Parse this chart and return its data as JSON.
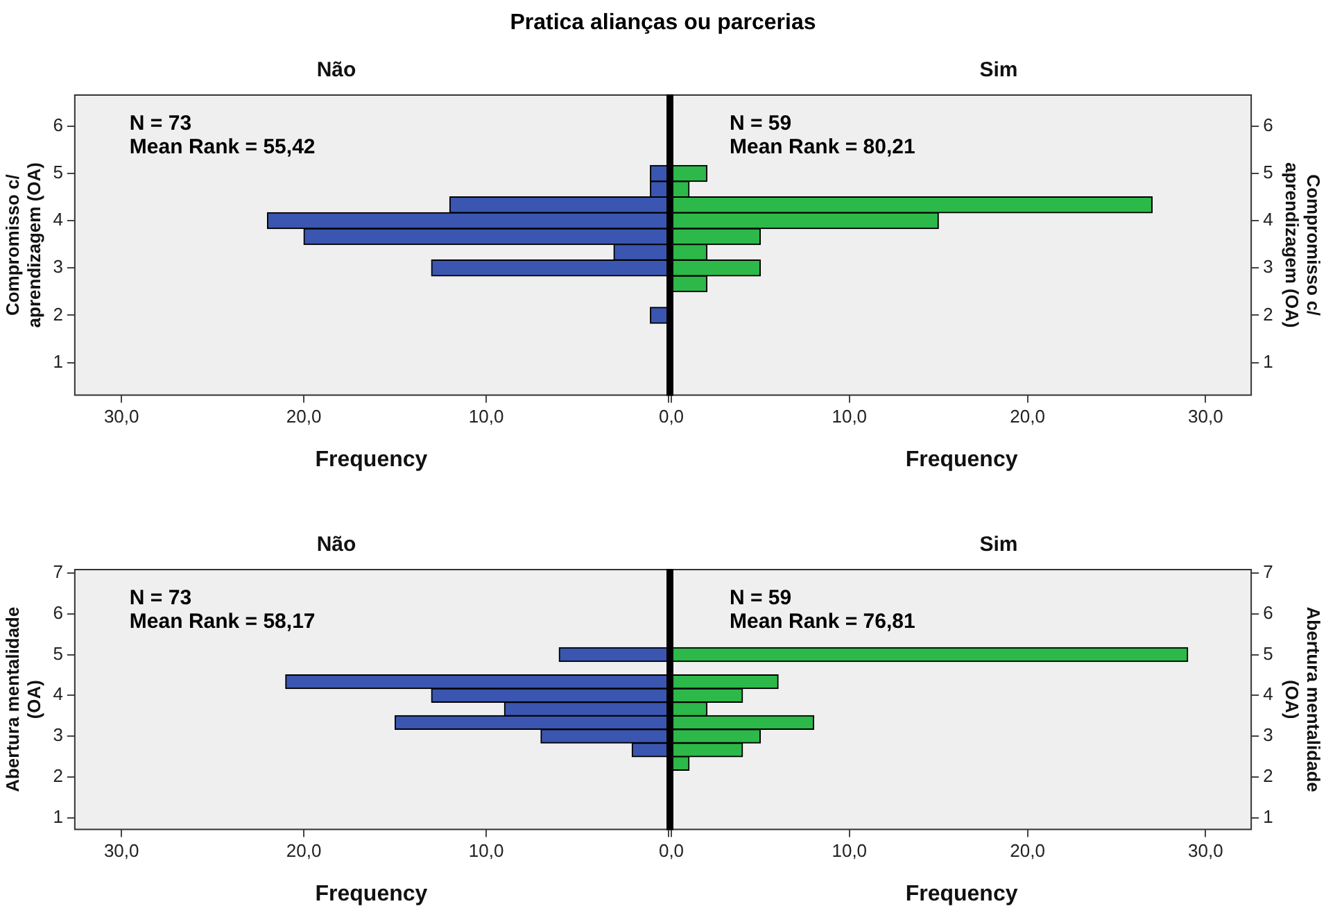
{
  "chart_data": [
    {
      "type": "histogram",
      "orientation": "horizontal",
      "title": "Pratica alianças ou parcerias",
      "subtitle": "Não",
      "xlabel": "Frequency",
      "ylabel": "Compromisso c/ aprendizagem (OA)",
      "color": "#3a56b0",
      "bins": [
        1.83,
        2.17,
        2.5,
        2.83,
        3.17,
        3.5,
        3.83,
        4.17,
        4.5,
        4.83,
        5.17
      ],
      "values": [
        1,
        0,
        0,
        13,
        3,
        20,
        22,
        12,
        1,
        1
      ],
      "xlim": [
        32.6,
        0
      ],
      "xticks": [
        {
          "value": 30,
          "label": "30,0"
        },
        {
          "value": 20,
          "label": "20,0"
        },
        {
          "value": 10,
          "label": "10,0"
        },
        {
          "value": 0,
          "label": null
        }
      ],
      "ylim": [
        0.3,
        6.67
      ],
      "yticks": [
        1,
        2,
        3,
        4,
        5,
        6
      ],
      "grid": false,
      "annotations": [
        "N = 73",
        "Mean Rank = 55,42"
      ]
    },
    {
      "type": "histogram",
      "orientation": "horizontal",
      "subtitle": "Sim",
      "xlabel": "Frequency",
      "ylabel": "Compromisso c/ aprendizagem (OA)",
      "color": "#2db84a",
      "bins": [
        1.83,
        2.17,
        2.5,
        2.83,
        3.17,
        3.5,
        3.83,
        4.17,
        4.5,
        4.83,
        5.17
      ],
      "values": [
        0,
        0,
        2,
        5,
        2,
        5,
        15,
        27,
        1,
        2
      ],
      "xlim": [
        0,
        32.6
      ],
      "xticks": [
        {
          "value": 0,
          "label": "0,0"
        },
        {
          "value": 10,
          "label": "10,0"
        },
        {
          "value": 20,
          "label": "20,0"
        },
        {
          "value": 30,
          "label": "30,0"
        }
      ],
      "ylim": [
        0.3,
        6.67
      ],
      "yticks": [
        1,
        2,
        3,
        4,
        5,
        6
      ],
      "grid": false,
      "annotations": [
        "N = 59",
        "Mean Rank = 80,21"
      ]
    },
    {
      "type": "histogram",
      "orientation": "horizontal",
      "subtitle": "Não",
      "xlabel": "Frequency",
      "ylabel": "Abertura mentalidade (OA)",
      "color": "#3a56b0",
      "bins": [
        1.83,
        2.17,
        2.5,
        2.83,
        3.17,
        3.5,
        3.83,
        4.17,
        4.5,
        4.83,
        5.17
      ],
      "values": [
        0,
        0,
        2,
        7,
        15,
        9,
        13,
        21,
        0,
        6
      ],
      "xlim": [
        32.6,
        0
      ],
      "xticks": [
        {
          "value": 30,
          "label": "30,0"
        },
        {
          "value": 20,
          "label": "20,0"
        },
        {
          "value": 10,
          "label": "10,0"
        },
        {
          "value": 0,
          "label": null
        }
      ],
      "ylim": [
        0.7,
        7.1
      ],
      "yticks": [
        1,
        2,
        3,
        4,
        5,
        6,
        7
      ],
      "grid": false,
      "annotations": [
        "N = 73",
        "Mean Rank = 58,17"
      ]
    },
    {
      "type": "histogram",
      "orientation": "horizontal",
      "subtitle": "Sim",
      "xlabel": "Frequency",
      "ylabel": "Abertura mentalidade (OA)",
      "color": "#2db84a",
      "bins": [
        1.83,
        2.17,
        2.5,
        2.83,
        3.17,
        3.5,
        3.83,
        4.17,
        4.5,
        4.83,
        5.17
      ],
      "values": [
        0,
        1,
        4,
        5,
        8,
        2,
        4,
        6,
        0,
        29
      ],
      "xlim": [
        0,
        32.6
      ],
      "xticks": [
        {
          "value": 0,
          "label": "0,0"
        },
        {
          "value": 10,
          "label": "10,0"
        },
        {
          "value": 20,
          "label": "20,0"
        },
        {
          "value": 30,
          "label": "30,0"
        }
      ],
      "ylim": [
        0.7,
        7.1
      ],
      "yticks": [
        1,
        2,
        3,
        4,
        5,
        6,
        7
      ],
      "grid": false,
      "annotations": [
        "N = 59",
        "Mean Rank = 76,81"
      ]
    }
  ]
}
